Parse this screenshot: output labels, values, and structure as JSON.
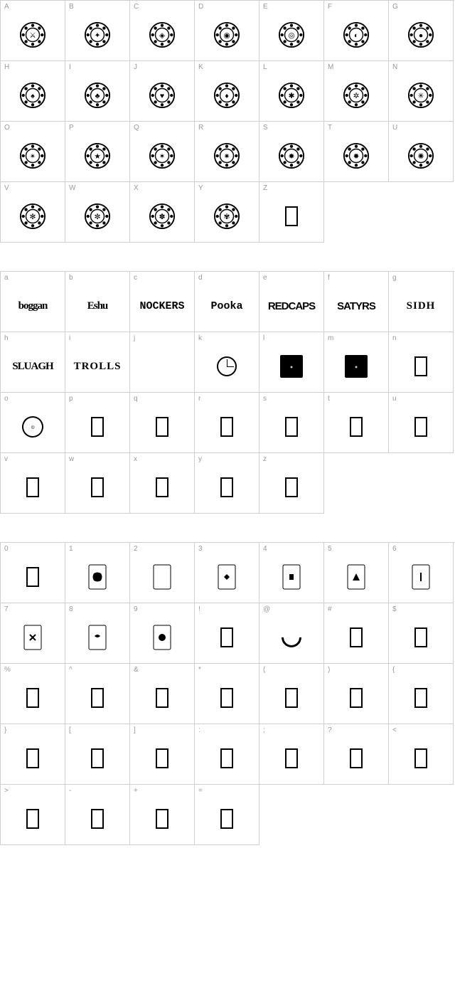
{
  "sections": [
    {
      "id": "uppercase",
      "cells": [
        {
          "label": "A",
          "type": "seal",
          "pattern": 0
        },
        {
          "label": "B",
          "type": "seal",
          "pattern": 1
        },
        {
          "label": "C",
          "type": "seal",
          "pattern": 2
        },
        {
          "label": "D",
          "type": "seal",
          "pattern": 3
        },
        {
          "label": "E",
          "type": "seal",
          "pattern": 4
        },
        {
          "label": "F",
          "type": "seal",
          "pattern": 5
        },
        {
          "label": "G",
          "type": "seal",
          "pattern": 6
        },
        {
          "label": "H",
          "type": "seal",
          "pattern": 7
        },
        {
          "label": "I",
          "type": "seal",
          "pattern": 8
        },
        {
          "label": "J",
          "type": "seal",
          "pattern": 9
        },
        {
          "label": "K",
          "type": "seal",
          "pattern": 10
        },
        {
          "label": "L",
          "type": "seal",
          "pattern": 11
        },
        {
          "label": "M",
          "type": "seal",
          "pattern": 12
        },
        {
          "label": "N",
          "type": "seal",
          "pattern": 13
        },
        {
          "label": "O",
          "type": "seal",
          "pattern": 14
        },
        {
          "label": "P",
          "type": "seal",
          "pattern": 15
        },
        {
          "label": "Q",
          "type": "seal",
          "pattern": 16
        },
        {
          "label": "R",
          "type": "seal",
          "pattern": 17
        },
        {
          "label": "S",
          "type": "seal",
          "pattern": 18
        },
        {
          "label": "T",
          "type": "seal",
          "pattern": 19
        },
        {
          "label": "U",
          "type": "seal",
          "pattern": 20
        },
        {
          "label": "V",
          "type": "seal",
          "pattern": 21
        },
        {
          "label": "W",
          "type": "seal",
          "pattern": 22
        },
        {
          "label": "X",
          "type": "seal",
          "pattern": 23
        },
        {
          "label": "Y",
          "type": "seal",
          "pattern": 24
        },
        {
          "label": "Z",
          "type": "box"
        }
      ]
    },
    {
      "id": "lowercase",
      "cells": [
        {
          "label": "a",
          "type": "text",
          "text": "boggan",
          "style": "boggan"
        },
        {
          "label": "b",
          "type": "text",
          "text": "Eshu",
          "style": "boggan"
        },
        {
          "label": "c",
          "type": "text",
          "text": "NOCKERS",
          "style": "nockers"
        },
        {
          "label": "d",
          "type": "text",
          "text": "Pooka",
          "style": "nockers"
        },
        {
          "label": "e",
          "type": "text",
          "text": "REDCAPS",
          "style": "redcaps"
        },
        {
          "label": "f",
          "type": "text",
          "text": "SATYRS",
          "style": "redcaps"
        },
        {
          "label": "g",
          "type": "text",
          "text": "SIDH",
          "style": "trolls"
        },
        {
          "label": "h",
          "type": "text",
          "text": "SLUAGH",
          "style": "sluagh"
        },
        {
          "label": "i",
          "type": "text",
          "text": "TROLLS",
          "style": "trolls"
        },
        {
          "label": "j",
          "type": "text",
          "text": "",
          "style": "boggan"
        },
        {
          "label": "k",
          "type": "clock"
        },
        {
          "label": "l",
          "type": "logo"
        },
        {
          "label": "m",
          "type": "logo"
        },
        {
          "label": "n",
          "type": "box"
        },
        {
          "label": "o",
          "type": "badge"
        },
        {
          "label": "p",
          "type": "box"
        },
        {
          "label": "q",
          "type": "box"
        },
        {
          "label": "r",
          "type": "box"
        },
        {
          "label": "s",
          "type": "box"
        },
        {
          "label": "t",
          "type": "box"
        },
        {
          "label": "u",
          "type": "box"
        },
        {
          "label": "v",
          "type": "box"
        },
        {
          "label": "w",
          "type": "box"
        },
        {
          "label": "x",
          "type": "box"
        },
        {
          "label": "y",
          "type": "box"
        },
        {
          "label": "z",
          "type": "box"
        }
      ]
    },
    {
      "id": "symbols",
      "cells": [
        {
          "label": "0",
          "type": "box"
        },
        {
          "label": "1",
          "type": "card",
          "variant": 1
        },
        {
          "label": "2",
          "type": "card",
          "variant": 2
        },
        {
          "label": "3",
          "type": "card",
          "variant": 3
        },
        {
          "label": "4",
          "type": "card",
          "variant": 4
        },
        {
          "label": "5",
          "type": "card",
          "variant": 5
        },
        {
          "label": "6",
          "type": "card",
          "variant": 6
        },
        {
          "label": "7",
          "type": "card",
          "variant": 7
        },
        {
          "label": "8",
          "type": "card",
          "variant": 8
        },
        {
          "label": "9",
          "type": "card",
          "variant": 9
        },
        {
          "label": "!",
          "type": "box"
        },
        {
          "label": "@",
          "type": "swirl"
        },
        {
          "label": "#",
          "type": "box"
        },
        {
          "label": "$",
          "type": "box"
        },
        {
          "label": "%",
          "type": "box"
        },
        {
          "label": "^",
          "type": "box"
        },
        {
          "label": "&",
          "type": "box"
        },
        {
          "label": "*",
          "type": "box"
        },
        {
          "label": "(",
          "type": "box"
        },
        {
          "label": ")",
          "type": "box"
        },
        {
          "label": "{",
          "type": "box"
        },
        {
          "label": "}",
          "type": "box"
        },
        {
          "label": "[",
          "type": "box"
        },
        {
          "label": "]",
          "type": "box"
        },
        {
          "label": ":",
          "type": "box"
        },
        {
          "label": ";",
          "type": "box"
        },
        {
          "label": "?",
          "type": "box"
        },
        {
          "label": "<",
          "type": "box"
        },
        {
          "label": ">",
          "type": "box"
        },
        {
          "label": "-",
          "type": "box"
        },
        {
          "label": "+",
          "type": "box"
        },
        {
          "label": "=",
          "type": "box"
        }
      ]
    }
  ],
  "colors": {
    "border": "#d0d0d0",
    "label": "#999999",
    "glyph": "#000000",
    "background": "#ffffff"
  },
  "cell_size": {
    "width": 91,
    "height": 85
  },
  "seal_center_symbols": [
    "⚔",
    "✦",
    "◈",
    "◉",
    "◎",
    "◐",
    "●",
    "♠",
    "♣",
    "♥",
    "♦",
    "✱",
    "✲",
    "✳",
    "✴",
    "★",
    "✶",
    "✷",
    "✸",
    "✹",
    "✺",
    "✻",
    "✼",
    "✽",
    "✾"
  ]
}
